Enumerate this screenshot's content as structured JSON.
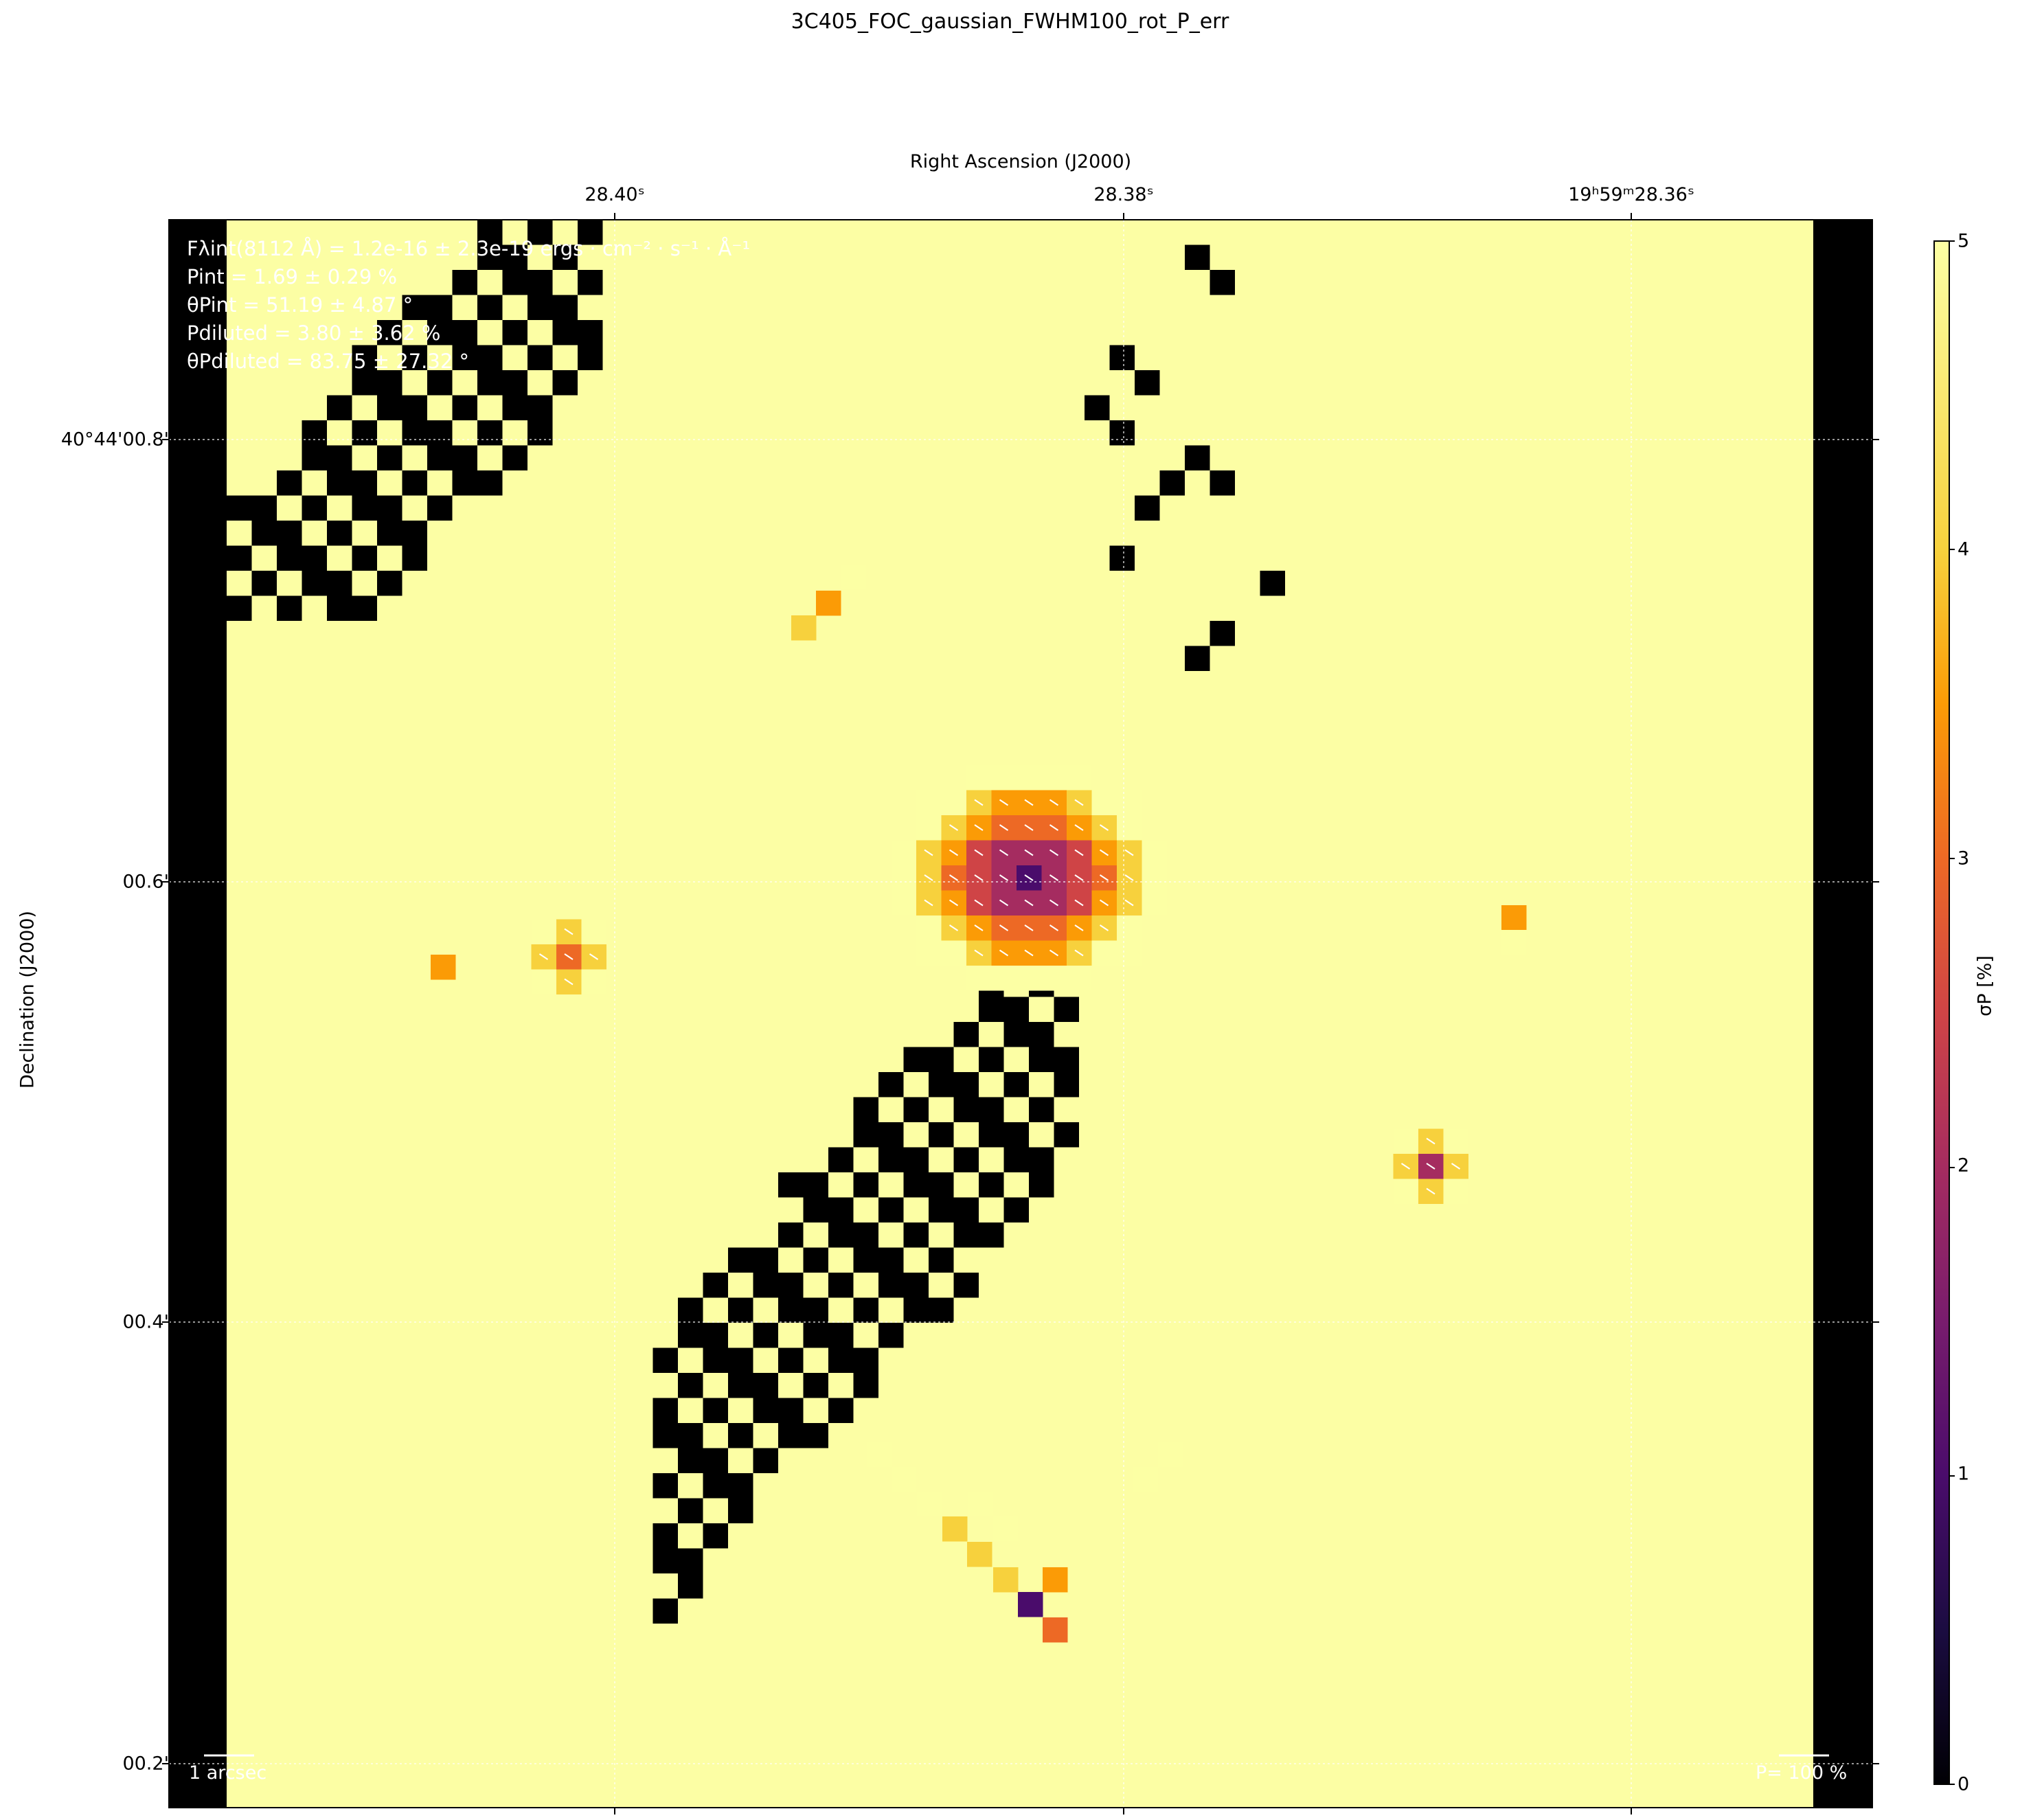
{
  "title": "3C405_FOC_gaussian_FWHM100_rot_P_err",
  "axes": {
    "top_label": "Right Ascension (J2000)",
    "left_label": "Declination (J2000)",
    "ra_ticks": [
      "28.40ˢ",
      "28.38ˢ",
      "19ʰ59ᵐ28.36ˢ"
    ],
    "dec_ticks": [
      "40°44'00.8\"",
      "00.6\"",
      "00.4\"",
      "00.2\""
    ]
  },
  "colorbar": {
    "label": "σP [%]",
    "colormap": "inferno",
    "range": [
      0,
      5
    ],
    "ticks": [
      "0",
      "1",
      "2",
      "3",
      "4",
      "5"
    ]
  },
  "annotations": [
    "Fλint(8112 Å) = 1.2e-16 ± 2.3e-19 ergs · cm⁻² · s⁻¹ · Å⁻¹",
    "Pint = 1.69 ± 0.29 %",
    "θPint = 51.19 ± 4.87 °",
    "Pdiluted = 3.80 ± 3.62 %",
    "θPdiluted = 83.75 ± 27.32 °"
  ],
  "scale_bars": {
    "left": "1 arcsec",
    "right": "P= 100 %"
  },
  "colors": {
    "background_map": "#fcfea4",
    "masked": "#000000"
  },
  "chart_data": {
    "type": "heatmap",
    "title": "3C405_FOC_gaussian_FWHM100_rot_P_err",
    "xlabel": "Right Ascension (J2000)",
    "ylabel": "Declination (J2000)",
    "zlabel": "σP [%]",
    "zlim": [
      0,
      5
    ],
    "grid": true,
    "note_values": "σP in percent; estimated from color",
    "masked_regions": [
      "upper-left diagonal band",
      "lower-right diagonal band",
      "left edge column",
      "right edge column"
    ],
    "features": [
      {
        "name": "central nucleus",
        "ra": "28.383s",
        "dec": "00.61\"",
        "sigma_min": 0.8,
        "sigma_max": 4.7
      },
      {
        "name": "western knot",
        "ra": "28.398s",
        "dec": "00.57\"",
        "sigma_min": 2.6,
        "sigma_max": 4.5
      },
      {
        "name": "eastern knot",
        "ra": "28.367s",
        "dec": "00.47\"",
        "sigma_min": 1.9,
        "sigma_max": 4.6
      },
      {
        "name": "southern filament",
        "ra": "28.385s",
        "dec": "00.28\"",
        "sigma_min": 0.9,
        "sigma_max": 4.6
      }
    ]
  }
}
